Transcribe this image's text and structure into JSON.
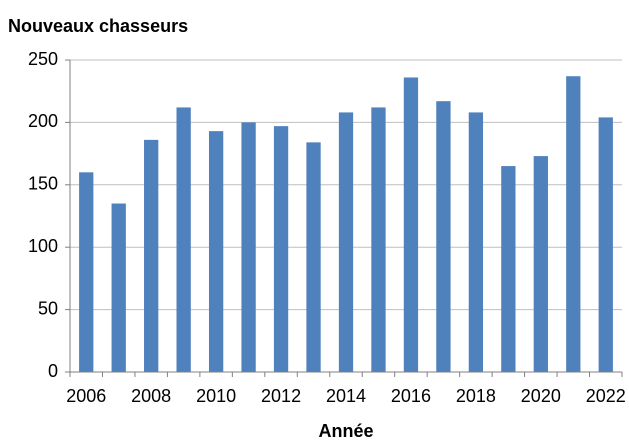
{
  "chart_data": {
    "type": "bar",
    "title": "Nouveaux chasseurs",
    "x_label": "Année",
    "categories": [
      "2006",
      null,
      "2008",
      null,
      "2010",
      null,
      "2012",
      null,
      "2014",
      null,
      "2016",
      null,
      "2018",
      null,
      "2020",
      null,
      "2022"
    ],
    "values": [
      160,
      135,
      186,
      212,
      193,
      200,
      197,
      184,
      208,
      212,
      236,
      217,
      208,
      165,
      173,
      237,
      204
    ],
    "color": "#4f81bd",
    "ylim": [
      0,
      250
    ],
    "yticks": [
      0,
      50,
      100,
      150,
      200,
      250
    ],
    "grid": true
  }
}
